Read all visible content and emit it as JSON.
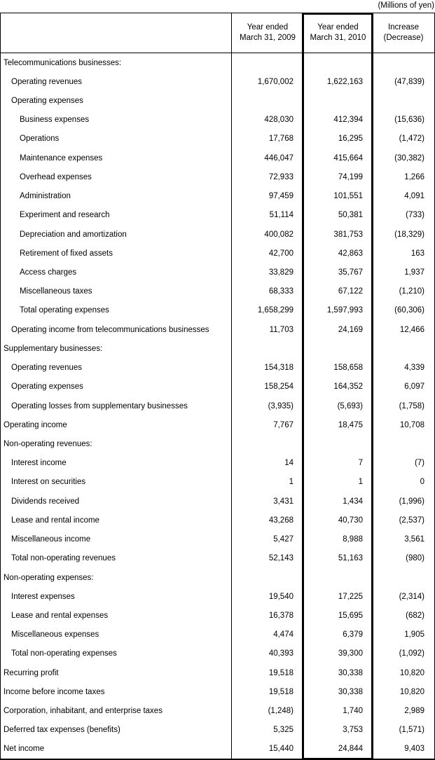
{
  "caption": "(Millions of yen)",
  "table": {
    "header": {
      "label": "",
      "col_2009": "Year ended\nMarch 31, 2009",
      "col_2010": "Year ended\nMarch 31, 2010",
      "col_diff": "Increase\n(Decrease)"
    },
    "rows": [
      {
        "label": "Telecommunications businesses:",
        "indent": 0,
        "y2009": "",
        "y2010": "",
        "diff": ""
      },
      {
        "label": "Operating revenues",
        "indent": 1,
        "y2009": "1,670,002",
        "y2010": "1,622,163",
        "diff": "(47,839)"
      },
      {
        "label": "Operating expenses",
        "indent": 1,
        "y2009": "",
        "y2010": "",
        "diff": ""
      },
      {
        "label": "Business expenses",
        "indent": 2,
        "y2009": "428,030",
        "y2010": "412,394",
        "diff": "(15,636)"
      },
      {
        "label": "Operations",
        "indent": 2,
        "y2009": "17,768",
        "y2010": "16,295",
        "diff": "(1,472)"
      },
      {
        "label": "Maintenance expenses",
        "indent": 2,
        "y2009": "446,047",
        "y2010": "415,664",
        "diff": "(30,382)"
      },
      {
        "label": "Overhead expenses",
        "indent": 2,
        "y2009": "72,933",
        "y2010": "74,199",
        "diff": "1,266"
      },
      {
        "label": "Administration",
        "indent": 2,
        "y2009": "97,459",
        "y2010": "101,551",
        "diff": "4,091"
      },
      {
        "label": "Experiment and research",
        "indent": 2,
        "y2009": "51,114",
        "y2010": "50,381",
        "diff": "(733)"
      },
      {
        "label": "Depreciation and amortization",
        "indent": 2,
        "y2009": "400,082",
        "y2010": "381,753",
        "diff": "(18,329)"
      },
      {
        "label": "Retirement of fixed assets",
        "indent": 2,
        "y2009": "42,700",
        "y2010": "42,863",
        "diff": "163"
      },
      {
        "label": "Access charges",
        "indent": 2,
        "y2009": "33,829",
        "y2010": "35,767",
        "diff": "1,937"
      },
      {
        "label": "Miscellaneous taxes",
        "indent": 2,
        "y2009": "68,333",
        "y2010": "67,122",
        "diff": "(1,210)"
      },
      {
        "label": "Total operating expenses",
        "indent": 2,
        "y2009": "1,658,299",
        "y2010": "1,597,993",
        "diff": "(60,306)"
      },
      {
        "label": "Operating income from telecommunications businesses",
        "indent": 1,
        "y2009": "11,703",
        "y2010": "24,169",
        "diff": "12,466"
      },
      {
        "label": "Supplementary businesses:",
        "indent": 0,
        "y2009": "",
        "y2010": "",
        "diff": ""
      },
      {
        "label": "Operating revenues",
        "indent": 1,
        "y2009": "154,318",
        "y2010": "158,658",
        "diff": "4,339"
      },
      {
        "label": "Operating expenses",
        "indent": 1,
        "y2009": "158,254",
        "y2010": "164,352",
        "diff": "6,097"
      },
      {
        "label": "Operating losses from supplementary businesses",
        "indent": 1,
        "y2009": "(3,935)",
        "y2010": "(5,693)",
        "diff": "(1,758)"
      },
      {
        "label": "Operating income",
        "indent": 0,
        "y2009": "7,767",
        "y2010": "18,475",
        "diff": "10,708"
      },
      {
        "label": "Non-operating revenues:",
        "indent": 0,
        "y2009": "",
        "y2010": "",
        "diff": ""
      },
      {
        "label": "Interest income",
        "indent": 1,
        "y2009": "14",
        "y2010": "7",
        "diff": "(7)"
      },
      {
        "label": "Interest on securities",
        "indent": 1,
        "y2009": "1",
        "y2010": "1",
        "diff": "0"
      },
      {
        "label": "Dividends received",
        "indent": 1,
        "y2009": "3,431",
        "y2010": "1,434",
        "diff": "(1,996)"
      },
      {
        "label": "Lease and rental income",
        "indent": 1,
        "y2009": "43,268",
        "y2010": "40,730",
        "diff": "(2,537)"
      },
      {
        "label": "Miscellaneous income",
        "indent": 1,
        "y2009": "5,427",
        "y2010": "8,988",
        "diff": "3,561"
      },
      {
        "label": "Total non-operating revenues",
        "indent": 1,
        "y2009": "52,143",
        "y2010": "51,163",
        "diff": "(980)"
      },
      {
        "label": "Non-operating expenses:",
        "indent": 0,
        "y2009": "",
        "y2010": "",
        "diff": ""
      },
      {
        "label": "Interest expenses",
        "indent": 1,
        "y2009": "19,540",
        "y2010": "17,225",
        "diff": "(2,314)"
      },
      {
        "label": "Lease and rental expenses",
        "indent": 1,
        "y2009": "16,378",
        "y2010": "15,695",
        "diff": "(682)"
      },
      {
        "label": "Miscellaneous expenses",
        "indent": 1,
        "y2009": "4,474",
        "y2010": "6,379",
        "diff": "1,905"
      },
      {
        "label": "Total non-operating expenses",
        "indent": 1,
        "y2009": "40,393",
        "y2010": "39,300",
        "diff": "(1,092)"
      },
      {
        "label": "Recurring profit",
        "indent": 0,
        "y2009": "19,518",
        "y2010": "30,338",
        "diff": "10,820"
      },
      {
        "label": "Income before income taxes",
        "indent": 0,
        "y2009": "19,518",
        "y2010": "30,338",
        "diff": "10,820"
      },
      {
        "label": "Corporation, inhabitant, and enterprise taxes",
        "indent": 0,
        "y2009": "(1,248)",
        "y2010": "1,740",
        "diff": "2,989"
      },
      {
        "label": "Deferred tax expenses (benefits)",
        "indent": 0,
        "y2009": "5,325",
        "y2010": "3,753",
        "diff": "(1,571)"
      },
      {
        "label": "Net income",
        "indent": 0,
        "y2009": "15,440",
        "y2010": "24,844",
        "diff": "9,403"
      }
    ]
  }
}
